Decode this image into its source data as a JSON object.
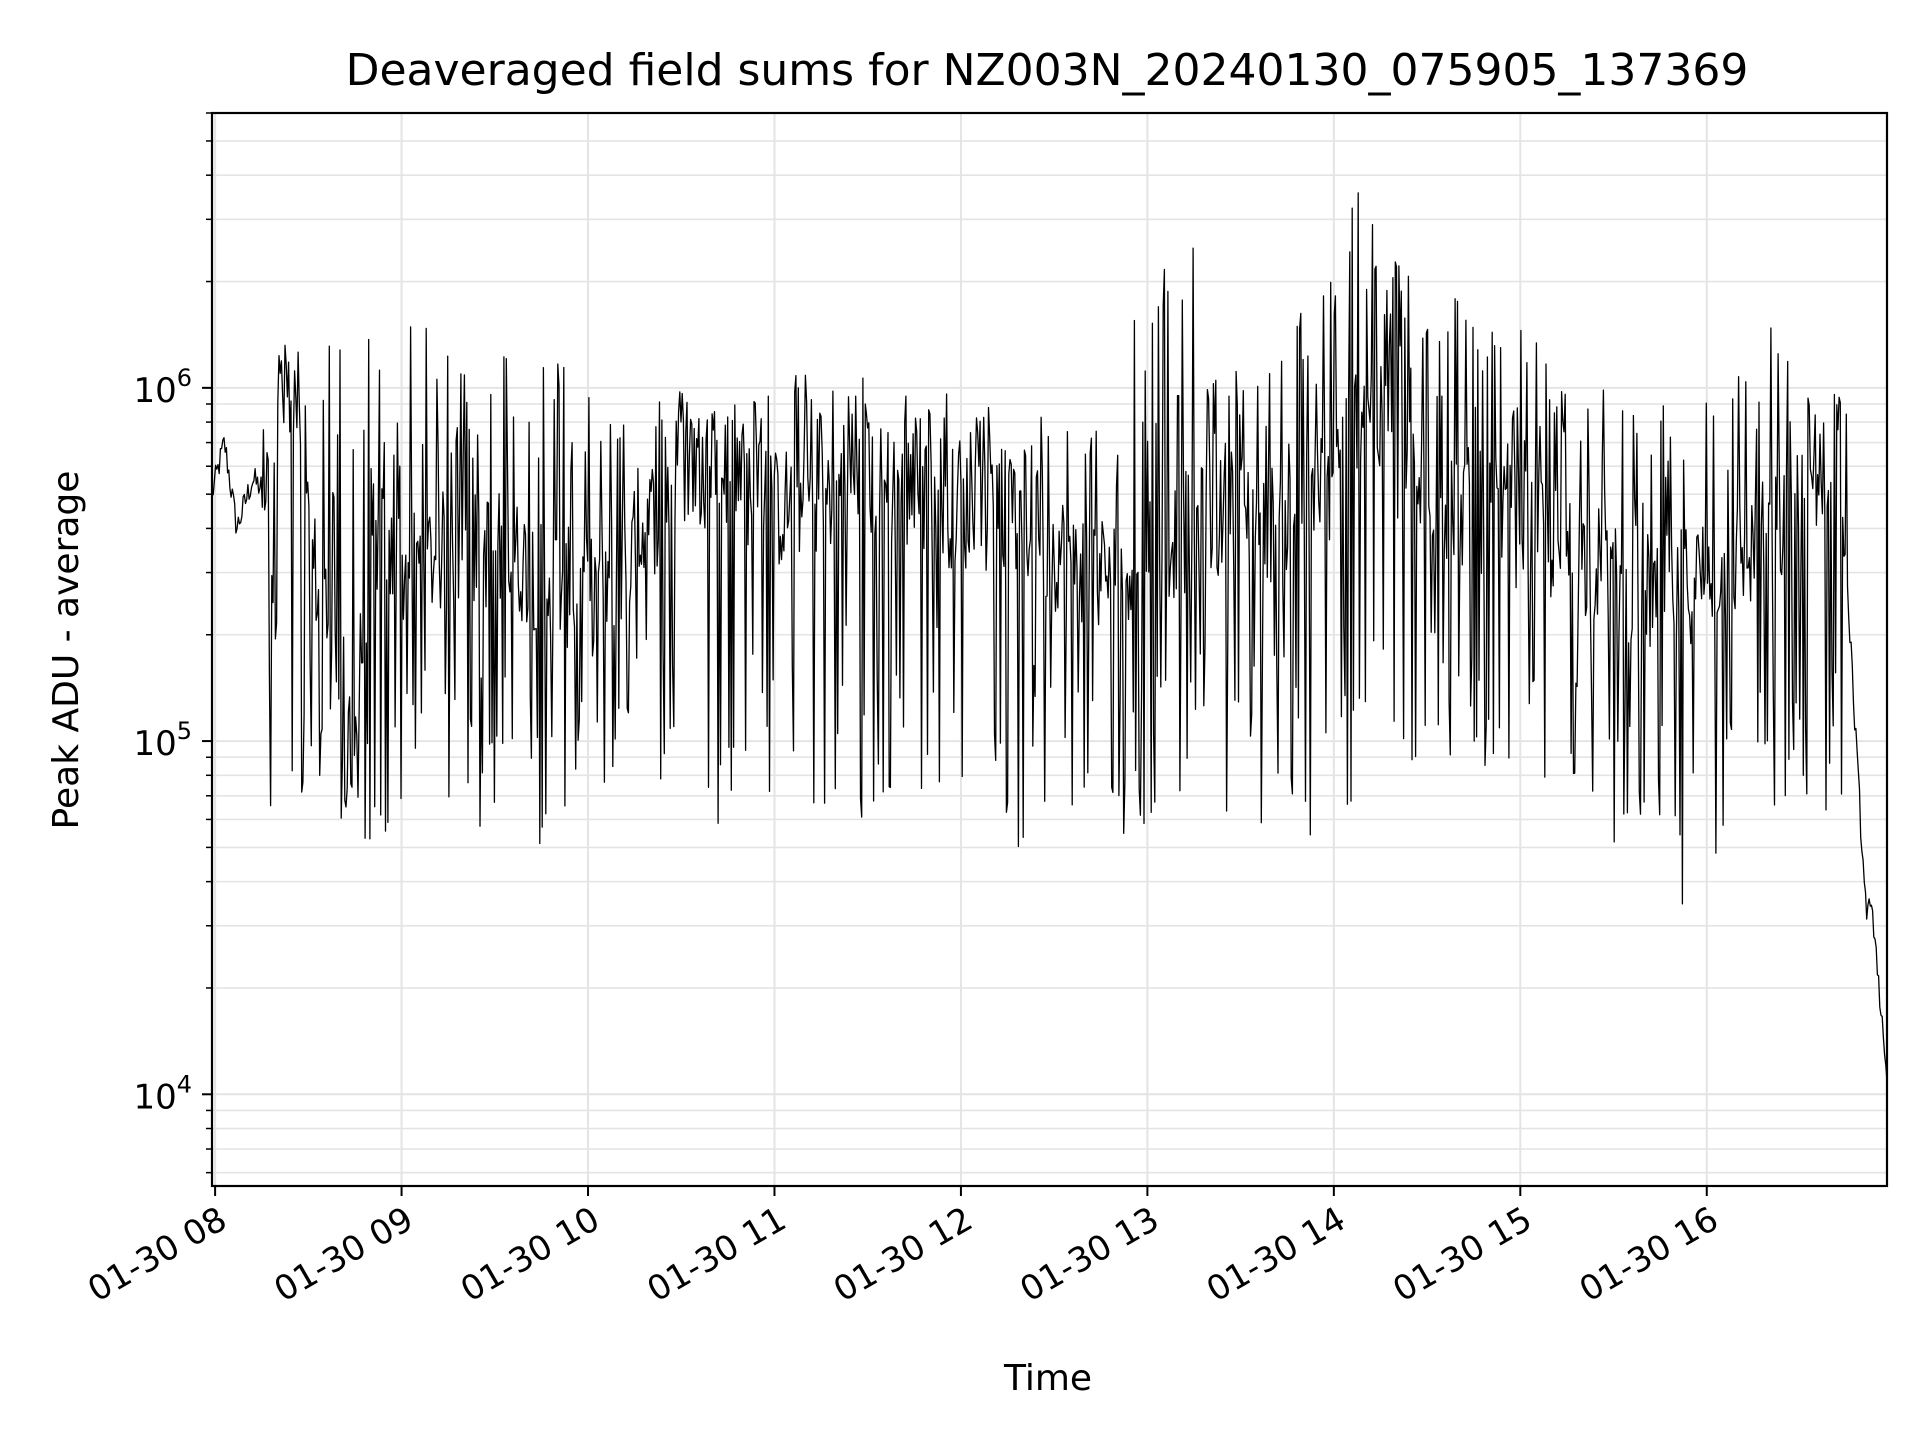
{
  "chart_data": {
    "type": "line",
    "title": "Deaveraged field sums for NZ003N_20240130_075905_137369",
    "xlabel": "Time",
    "ylabel": "Peak ADU - average",
    "yscale": "log",
    "ylim": [
      5500,
      6000000
    ],
    "xlim": [
      "2024-01-30 07:59",
      "2024-01-30 16:58"
    ],
    "grid": true,
    "line_color": "#000000",
    "x_ticks": [
      "01-30 08",
      "01-30 09",
      "01-30 10",
      "01-30 11",
      "01-30 12",
      "01-30 13",
      "01-30 14",
      "01-30 15",
      "01-30 16"
    ],
    "y_ticks": [
      {
        "value": 10000,
        "base": "10",
        "exp": "4"
      },
      {
        "value": 100000,
        "base": "10",
        "exp": "5"
      },
      {
        "value": 1000000,
        "base": "10",
        "exp": "6"
      }
    ],
    "series": [
      {
        "x": [
          "2024-01-30 07:59",
          "2024-01-30 08:03",
          "2024-01-30 08:07",
          "2024-01-30 08:12",
          "2024-01-30 08:15",
          "2024-01-30 08:18",
          "2024-01-30 08:22",
          "2024-01-30 08:26",
          "2024-01-30 08:30",
          "2024-01-30 08:35",
          "2024-01-30 08:40",
          "2024-01-30 08:45",
          "2024-01-30 08:50",
          "2024-01-30 09:00",
          "2024-01-30 09:15",
          "2024-01-30 09:30",
          "2024-01-30 09:45",
          "2024-01-30 10:00",
          "2024-01-30 10:15",
          "2024-01-30 10:30",
          "2024-01-30 10:45",
          "2024-01-30 11:00",
          "2024-01-30 11:15",
          "2024-01-30 11:30",
          "2024-01-30 11:45",
          "2024-01-30 12:00",
          "2024-01-30 12:15",
          "2024-01-30 12:30",
          "2024-01-30 12:45",
          "2024-01-30 13:00",
          "2024-01-30 13:15",
          "2024-01-30 13:30",
          "2024-01-30 13:45",
          "2024-01-30 14:00",
          "2024-01-30 14:10",
          "2024-01-30 14:20",
          "2024-01-30 14:30",
          "2024-01-30 14:45",
          "2024-01-30 15:00",
          "2024-01-30 15:15",
          "2024-01-30 15:30",
          "2024-01-30 15:45",
          "2024-01-30 16:00",
          "2024-01-30 16:15",
          "2024-01-30 16:30",
          "2024-01-30 16:43",
          "2024-01-30 16:45",
          "2024-01-30 16:48",
          "2024-01-30 16:51",
          "2024-01-30 16:54",
          "2024-01-30 16:58"
        ],
        "values": [
          500000,
          700000,
          400000,
          550000,
          520000,
          900000,
          950000,
          700000,
          350000,
          250000,
          150000,
          100000,
          400000,
          300000,
          350000,
          350000,
          300000,
          250000,
          350000,
          600000,
          600000,
          450000,
          500000,
          550000,
          500000,
          450000,
          450000,
          350000,
          300000,
          350000,
          400000,
          450000,
          400000,
          550000,
          1000000,
          600000,
          500000,
          450000,
          400000,
          350000,
          300000,
          250000,
          300000,
          350000,
          450000,
          800000,
          300000,
          100000,
          35000,
          30000,
          10000
        ],
        "peaks": [
          1300000,
          1500000,
          1500000,
          1500000,
          1400000,
          1400000,
          1400000,
          1300000,
          1000000,
          1000000,
          900000,
          1000000,
          1100000,
          1000000,
          1100000,
          1000000,
          900000,
          800000,
          900000,
          1100000,
          2000000,
          2500000,
          1200000,
          1200000,
          2500000,
          4000000,
          2500000,
          2000000,
          2000000,
          1500000,
          1000000,
          1000000,
          900000,
          1000000,
          1200000,
          1600000,
          1000000
        ],
        "troughs": [
          60000,
          60000,
          50000,
          55000,
          60000,
          55000,
          50000,
          60000,
          70000,
          65000,
          50000,
          60000,
          60000,
          55000,
          50000,
          70000,
          60000,
          50000,
          60000,
          65000,
          50000,
          70000,
          60000,
          55000,
          50000,
          55000,
          60000,
          70000,
          80000,
          50000,
          45000,
          50000,
          60000,
          27000,
          45000,
          50000,
          60000
        ]
      }
    ]
  }
}
